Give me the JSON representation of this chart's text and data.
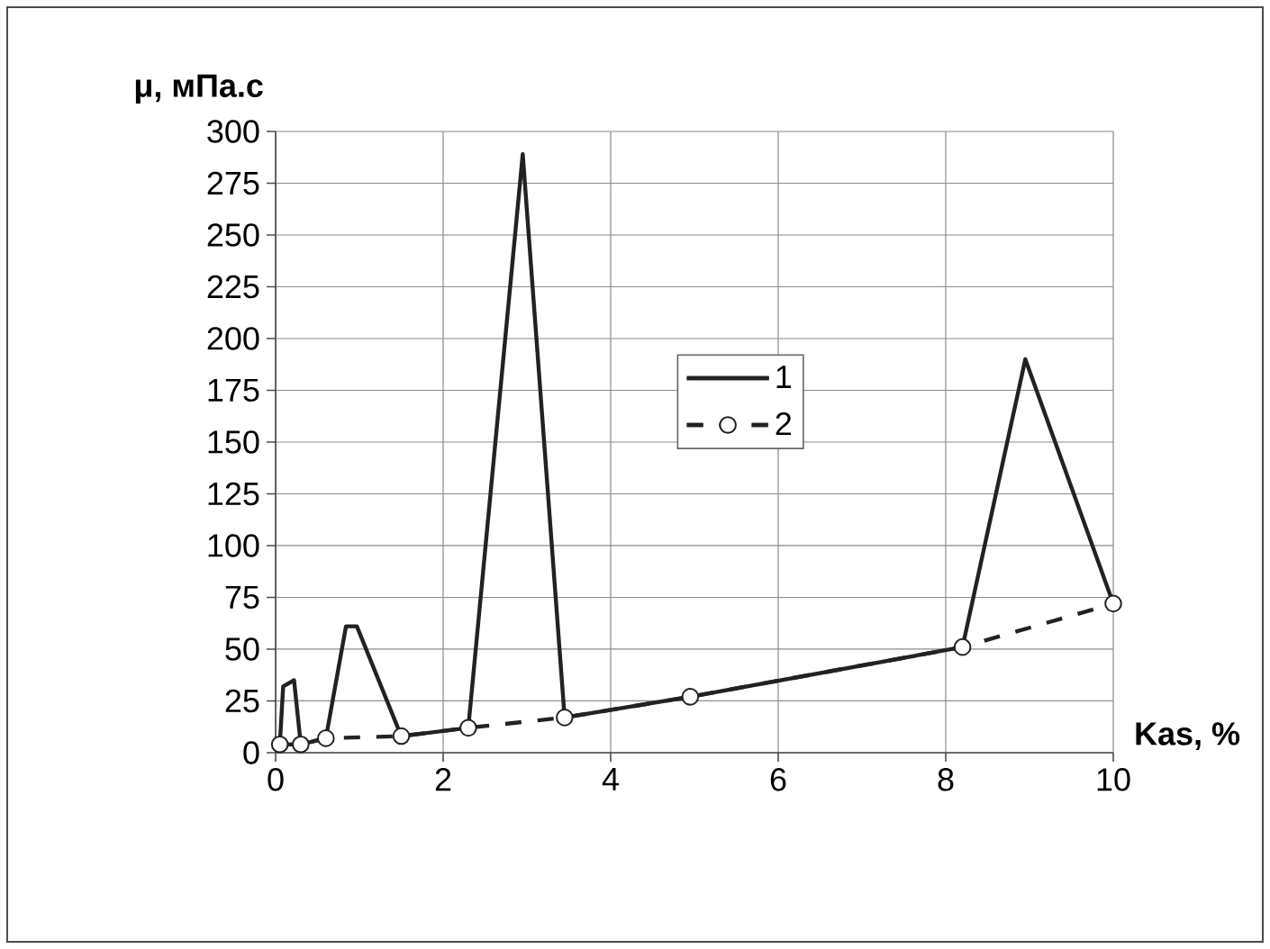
{
  "chart_data": {
    "type": "line",
    "xlabel": "Kas, %",
    "ylabel": "μ, мПа.с",
    "xlim": [
      0,
      10
    ],
    "xticks": [
      0,
      2,
      4,
      6,
      8,
      10
    ],
    "ylim": [
      0,
      300
    ],
    "yticks": [
      0,
      25,
      50,
      75,
      100,
      125,
      150,
      175,
      200,
      225,
      250,
      275,
      300
    ],
    "grid": true,
    "legend": "center",
    "series": [
      {
        "name": "2",
        "color": "#222222",
        "marker": "circle",
        "line_style": "dashed",
        "x": [
          0.05,
          0.3,
          0.6,
          1.5,
          2.3,
          3.45,
          4.95,
          8.2,
          10
        ],
        "values": [
          4,
          4,
          7,
          8,
          12,
          17,
          27,
          51,
          72
        ]
      },
      {
        "name": "1",
        "color": "#222222",
        "marker": "none",
        "line_style": "solid",
        "x": [
          0.05,
          0.09,
          0.22,
          0.3,
          0.6,
          0.84,
          0.97,
          1.5,
          2.3,
          2.95,
          3.45,
          4.95,
          8.2,
          8.95,
          10
        ],
        "values": [
          4,
          32,
          35,
          4,
          7,
          61,
          61,
          8,
          12,
          289,
          17,
          27,
          51,
          190,
          72
        ]
      }
    ]
  }
}
